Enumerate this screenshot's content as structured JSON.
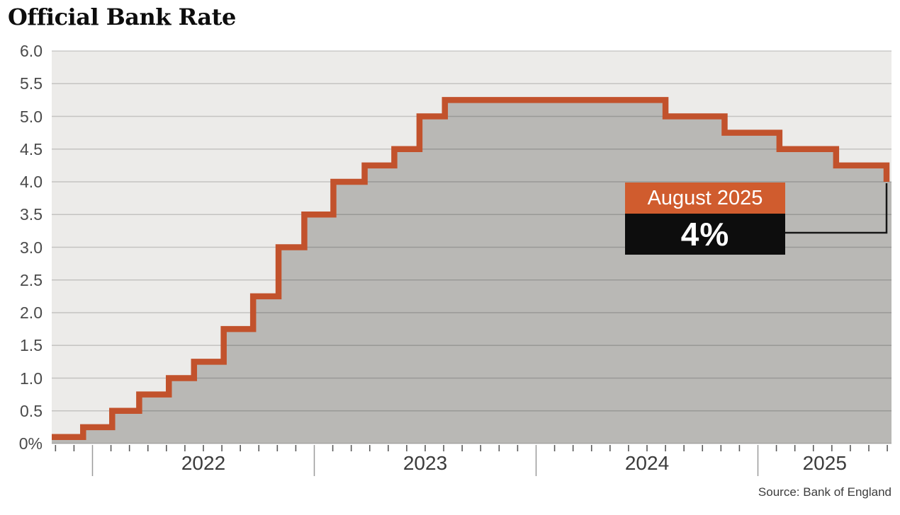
{
  "title": "Official Bank Rate",
  "source": "Source: Bank of England",
  "annotation": {
    "date_label": "August 2025",
    "value_label": "4%"
  },
  "colors": {
    "line": "#c2522c",
    "area_fill": "#b9b8b5",
    "plot_background": "#ecebe9",
    "gridline": "rgba(0,0,0,0.17)",
    "annotation_date_bg": "#d05c2e",
    "annotation_value_bg": "#0d0d0d",
    "annotation_text": "#ffffff",
    "connector": "#161616",
    "axis_text": "#4a4a4a",
    "year_text": "#3b3b3b",
    "title_text": "#0d0d0d",
    "source_text": "#3c3c3c",
    "tick_minor": "#5a5a5a",
    "tick_year": "#9a9a9a"
  },
  "chart_data": {
    "type": "area",
    "step": true,
    "title": "Official Bank Rate",
    "xlabel": "",
    "ylabel": "",
    "ylim": [
      0,
      6
    ],
    "ytick_step": 0.5,
    "grid": true,
    "legend": "none",
    "y_ticks": [
      {
        "value": 0,
        "label": "0%"
      },
      {
        "value": 0.5,
        "label": "0.5"
      },
      {
        "value": 1.0,
        "label": "1.0"
      },
      {
        "value": 1.5,
        "label": "1.5"
      },
      {
        "value": 2.0,
        "label": "2.0"
      },
      {
        "value": 2.5,
        "label": "2.5"
      },
      {
        "value": 3.0,
        "label": "3.0"
      },
      {
        "value": 3.5,
        "label": "3.5"
      },
      {
        "value": 4.0,
        "label": "4.0"
      },
      {
        "value": 4.5,
        "label": "4.5"
      },
      {
        "value": 5.0,
        "label": "5.0"
      },
      {
        "value": 5.5,
        "label": "5.5"
      },
      {
        "value": 6.0,
        "label": "6.0"
      }
    ],
    "x_year_ticks": [
      "2022",
      "2023",
      "2024",
      "2025"
    ],
    "series": [
      {
        "name": "Official Bank Rate (%)",
        "points": [
          {
            "date": "2021-10-15",
            "rate": 0.1
          },
          {
            "date": "2021-12-16",
            "rate": 0.25
          },
          {
            "date": "2022-02-03",
            "rate": 0.5
          },
          {
            "date": "2022-03-17",
            "rate": 0.75
          },
          {
            "date": "2022-05-05",
            "rate": 1.0
          },
          {
            "date": "2022-06-16",
            "rate": 1.25
          },
          {
            "date": "2022-08-04",
            "rate": 1.75
          },
          {
            "date": "2022-09-22",
            "rate": 2.25
          },
          {
            "date": "2022-11-03",
            "rate": 3.0
          },
          {
            "date": "2022-12-15",
            "rate": 3.5
          },
          {
            "date": "2023-02-02",
            "rate": 4.0
          },
          {
            "date": "2023-03-23",
            "rate": 4.25
          },
          {
            "date": "2023-05-11",
            "rate": 4.5
          },
          {
            "date": "2023-06-22",
            "rate": 5.0
          },
          {
            "date": "2023-08-03",
            "rate": 5.25
          },
          {
            "date": "2024-08-01",
            "rate": 5.0
          },
          {
            "date": "2024-11-07",
            "rate": 4.75
          },
          {
            "date": "2025-02-06",
            "rate": 4.5
          },
          {
            "date": "2025-05-08",
            "rate": 4.25
          },
          {
            "date": "2025-08-07",
            "rate": 4.0
          }
        ],
        "end": {
          "date": "2025-08-20",
          "rate": 4.0
        }
      }
    ],
    "annotation": {
      "label": "August 2025",
      "value": "4%",
      "points_to": {
        "date": "2025-08-07",
        "rate": 4.0
      }
    }
  }
}
